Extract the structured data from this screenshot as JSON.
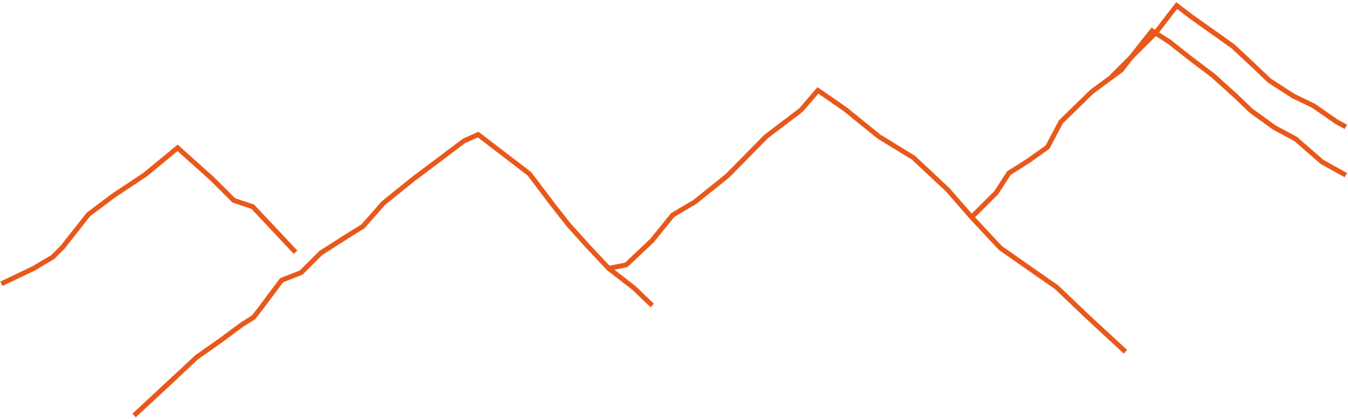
{
  "stroke_color": "#E8581A",
  "background_color": "#FFFFFF",
  "line_count": 2
}
